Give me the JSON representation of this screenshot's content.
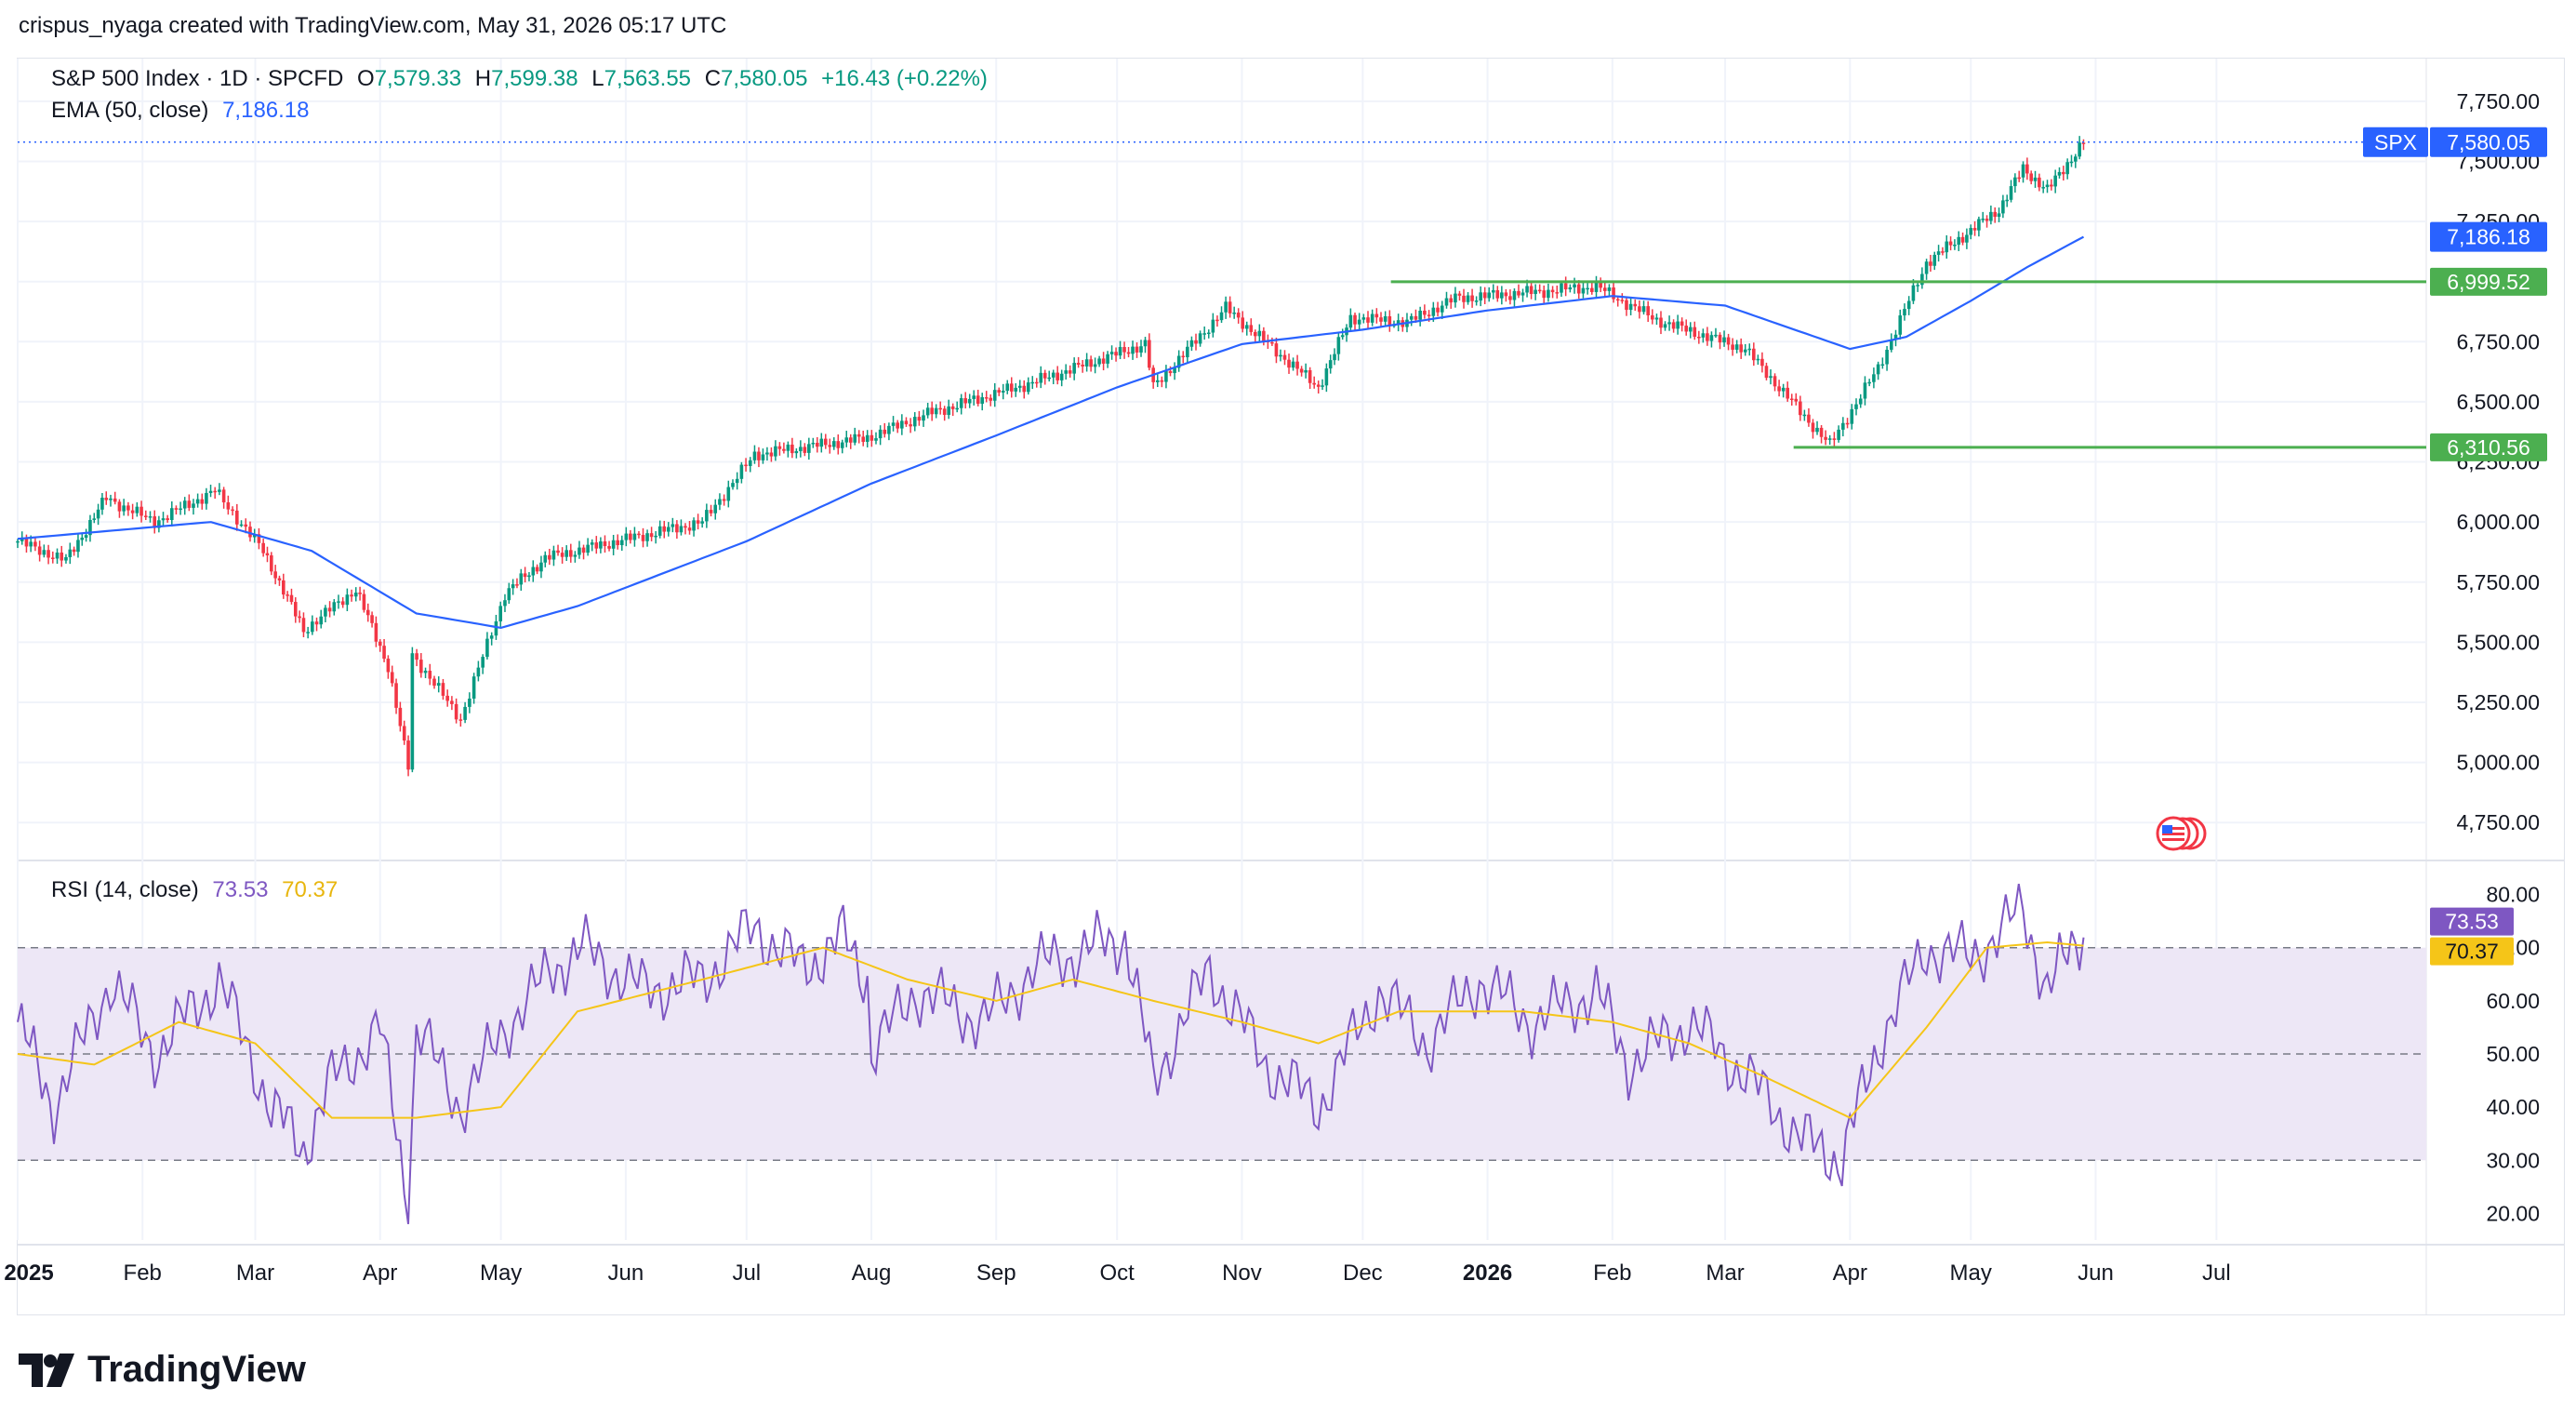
{
  "caption": "crispus_nyaga created with TradingView.com, May 31, 2026 05:17 UTC",
  "brand": "TradingView",
  "legend": {
    "symbol": "S&P 500 Index · 1D · SPCFD",
    "open_label": "O",
    "open": "7,579.33",
    "high_label": "H",
    "high": "7,599.38",
    "low_label": "L",
    "low": "7,563.55",
    "close_label": "C",
    "close": "7,580.05",
    "change": "+16.43 (+0.22%)",
    "ema_label": "EMA (50, close)",
    "ema_value": "7,186.18",
    "rsi_label": "RSI (14, close)",
    "rsi_value": "73.53",
    "rsi_ma_value": "70.37"
  },
  "colors": {
    "up": "#089981",
    "down": "#f23645",
    "ema": "#2962ff",
    "rsi": "#7e57c2",
    "rsi_ma": "#f5c518",
    "level": "#4caf50",
    "price_line": "#2962ff",
    "rsi_band": "#ede7f6"
  },
  "chart_data": [
    {
      "type": "candlestick",
      "title": "S&P 500 Index · 1D · SPCFD",
      "ylim": [
        4600,
        7850
      ],
      "y_ticks": [
        "4,750.00",
        "5,000.00",
        "5,250.00",
        "5,500.00",
        "5,750.00",
        "6,000.00",
        "6,250.00",
        "6,500.00",
        "6,750.00",
        "7,000.00",
        "7,250.00",
        "7,500.00",
        "7,750.00"
      ],
      "x_ticks": [
        "2025",
        "Feb",
        "Mar",
        "Apr",
        "May",
        "Jun",
        "Jul",
        "Aug",
        "Sep",
        "Oct",
        "Nov",
        "Dec",
        "2026",
        "Feb",
        "Mar",
        "Apr",
        "May",
        "Jun",
        "Jul"
      ],
      "x_ticks_bold": [
        "2025",
        "2026"
      ],
      "close_points": [
        [
          "2025-01-01",
          5920
        ],
        [
          "2025-01-13",
          5840
        ],
        [
          "2025-01-23",
          6100
        ],
        [
          "2025-02-04",
          6000
        ],
        [
          "2025-02-19",
          6130
        ],
        [
          "2025-03-03",
          5880
        ],
        [
          "2025-03-13",
          5550
        ],
        [
          "2025-03-26",
          5720
        ],
        [
          "2025-04-03",
          5400
        ],
        [
          "2025-04-08",
          4980
        ],
        [
          "2025-04-09",
          5450
        ],
        [
          "2025-04-21",
          5180
        ],
        [
          "2025-05-02",
          5700
        ],
        [
          "2025-05-12",
          5850
        ],
        [
          "2025-05-30",
          5920
        ],
        [
          "2025-06-20",
          6000
        ],
        [
          "2025-07-03",
          6280
        ],
        [
          "2025-07-31",
          6350
        ],
        [
          "2025-08-15",
          6450
        ],
        [
          "2025-09-10",
          6580
        ],
        [
          "2025-10-08",
          6740
        ],
        [
          "2025-10-10",
          6560
        ],
        [
          "2025-10-28",
          6890
        ],
        [
          "2025-11-20",
          6560
        ],
        [
          "2025-11-28",
          6850
        ],
        [
          "2025-12-12",
          6830
        ],
        [
          "2025-12-24",
          6930
        ],
        [
          "2026-01-15",
          6960
        ],
        [
          "2026-01-28",
          6980
        ],
        [
          "2026-02-12",
          6840
        ],
        [
          "2026-03-06",
          6720
        ],
        [
          "2026-03-27",
          6320
        ],
        [
          "2026-04-08",
          6640
        ],
        [
          "2026-04-20",
          7080
        ],
        [
          "2026-04-30",
          7200
        ],
        [
          "2026-05-08",
          7300
        ],
        [
          "2026-05-14",
          7470
        ],
        [
          "2026-05-20",
          7380
        ],
        [
          "2026-05-29",
          7580
        ]
      ],
      "ema50_points": [
        [
          "2025-01-01",
          5930
        ],
        [
          "2025-02-18",
          6000
        ],
        [
          "2025-03-15",
          5880
        ],
        [
          "2025-04-10",
          5620
        ],
        [
          "2025-05-01",
          5560
        ],
        [
          "2025-05-20",
          5650
        ],
        [
          "2025-07-01",
          5920
        ],
        [
          "2025-08-01",
          6160
        ],
        [
          "2025-09-01",
          6360
        ],
        [
          "2025-10-01",
          6560
        ],
        [
          "2025-11-01",
          6740
        ],
        [
          "2025-12-01",
          6800
        ],
        [
          "2026-01-01",
          6880
        ],
        [
          "2026-02-01",
          6940
        ],
        [
          "2026-03-01",
          6900
        ],
        [
          "2026-04-01",
          6720
        ],
        [
          "2026-04-15",
          6770
        ],
        [
          "2026-05-01",
          6920
        ],
        [
          "2026-05-15",
          7060
        ],
        [
          "2026-05-29",
          7186.18
        ]
      ],
      "levels": [
        {
          "label": "6,999.52",
          "value": 6999.52,
          "from": "2025-12-08"
        },
        {
          "label": "6,310.56",
          "value": 6310.56,
          "from": "2026-03-18"
        }
      ],
      "last_price": {
        "symbol": "SPX",
        "label": "7,580.05",
        "value": 7580.05
      },
      "ema_tag": {
        "label": "7,186.18",
        "value": 7186.18
      },
      "last_date": "2026-05-29"
    },
    {
      "type": "line",
      "title": "RSI (14, close)",
      "ylim": [
        15,
        85
      ],
      "y_ticks": [
        "20.00",
        "30.00",
        "40.00",
        "50.00",
        "60.00",
        "70.00",
        "80.00"
      ],
      "band": [
        30,
        70
      ],
      "dashed_lines": [
        30,
        50,
        70
      ],
      "rsi_points": [
        [
          "2025-01-01",
          56
        ],
        [
          "2025-01-10",
          40
        ],
        [
          "2025-01-24",
          64
        ],
        [
          "2025-02-04",
          50
        ],
        [
          "2025-02-20",
          64
        ],
        [
          "2025-03-05",
          40
        ],
        [
          "2025-03-13",
          32
        ],
        [
          "2025-03-20",
          45
        ],
        [
          "2025-04-01",
          55
        ],
        [
          "2025-04-08",
          22
        ],
        [
          "2025-04-10",
          55
        ],
        [
          "2025-04-21",
          40
        ],
        [
          "2025-05-02",
          55
        ],
        [
          "2025-05-14",
          66
        ],
        [
          "2025-05-21",
          70
        ],
        [
          "2025-06-05",
          62
        ],
        [
          "2025-06-20",
          64
        ],
        [
          "2025-07-03",
          74
        ],
        [
          "2025-07-15",
          66
        ],
        [
          "2025-07-25",
          72
        ],
        [
          "2025-07-31",
          64
        ],
        [
          "2025-08-01",
          50
        ],
        [
          "2025-08-12",
          62
        ],
        [
          "2025-08-29",
          56
        ],
        [
          "2025-09-10",
          66
        ],
        [
          "2025-09-25",
          70
        ],
        [
          "2025-10-03",
          72
        ],
        [
          "2025-10-10",
          45
        ],
        [
          "2025-10-24",
          66
        ],
        [
          "2025-11-07",
          48
        ],
        [
          "2025-11-20",
          40
        ],
        [
          "2025-12-05",
          62
        ],
        [
          "2025-12-17",
          52
        ],
        [
          "2025-12-30",
          64
        ],
        [
          "2026-01-12",
          56
        ],
        [
          "2026-01-28",
          62
        ],
        [
          "2026-02-05",
          48
        ],
        [
          "2026-02-20",
          56
        ],
        [
          "2026-03-06",
          46
        ],
        [
          "2026-03-20",
          34
        ],
        [
          "2026-03-30",
          30
        ],
        [
          "2026-04-08",
          52
        ],
        [
          "2026-04-20",
          70
        ],
        [
          "2026-05-01",
          68
        ],
        [
          "2026-05-14",
          77
        ],
        [
          "2026-05-20",
          62
        ],
        [
          "2026-05-29",
          73.53
        ]
      ],
      "rsi_ma_points": [
        [
          "2025-01-01",
          50
        ],
        [
          "2025-01-20",
          48
        ],
        [
          "2025-02-10",
          56
        ],
        [
          "2025-03-01",
          52
        ],
        [
          "2025-03-20",
          38
        ],
        [
          "2025-04-10",
          38
        ],
        [
          "2025-05-01",
          40
        ],
        [
          "2025-05-20",
          58
        ],
        [
          "2025-06-20",
          64
        ],
        [
          "2025-07-20",
          70
        ],
        [
          "2025-08-10",
          64
        ],
        [
          "2025-09-01",
          60
        ],
        [
          "2025-09-20",
          64
        ],
        [
          "2025-10-10",
          60
        ],
        [
          "2025-11-01",
          56
        ],
        [
          "2025-11-20",
          52
        ],
        [
          "2025-12-10",
          58
        ],
        [
          "2026-01-10",
          58
        ],
        [
          "2026-02-01",
          56
        ],
        [
          "2026-02-20",
          52
        ],
        [
          "2026-03-10",
          46
        ],
        [
          "2026-04-01",
          38
        ],
        [
          "2026-04-20",
          55
        ],
        [
          "2026-05-05",
          70
        ],
        [
          "2026-05-20",
          71
        ],
        [
          "2026-05-29",
          70.37
        ]
      ],
      "tags": [
        {
          "label": "73.53",
          "value": 73.53,
          "series": "rsi"
        },
        {
          "label": "70.37",
          "value": 70.37,
          "series": "rsi_ma"
        }
      ]
    }
  ]
}
